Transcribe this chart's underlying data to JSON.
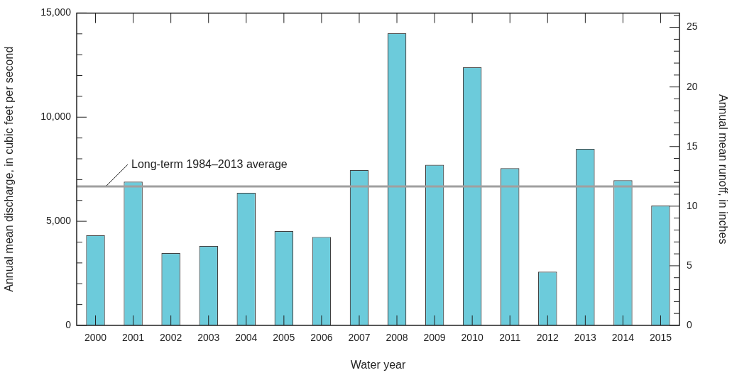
{
  "chart_data": {
    "type": "bar",
    "categories": [
      "2000",
      "2001",
      "2002",
      "2003",
      "2004",
      "2005",
      "2006",
      "2007",
      "2008",
      "2009",
      "2010",
      "2011",
      "2012",
      "2013",
      "2014",
      "2015"
    ],
    "values": [
      4330,
      6900,
      3470,
      3810,
      6370,
      4530,
      4250,
      7460,
      14030,
      7710,
      12400,
      7550,
      2580,
      8480,
      6970,
      5750
    ],
    "color": "#6ccbdb",
    "xlabel": "Water year",
    "ylabel": "Annual mean discharge, in cubic feet per second",
    "y2label": "Annual mean runoff, in inches",
    "ylim": [
      0,
      15000
    ],
    "yticks": [
      {
        "value": 0,
        "label": "0"
      },
      {
        "value": 1000,
        "label": null
      },
      {
        "value": 2000,
        "label": null
      },
      {
        "value": 3000,
        "label": null
      },
      {
        "value": 4000,
        "label": null
      },
      {
        "value": 5000,
        "label": "5,000"
      },
      {
        "value": 6000,
        "label": null
      },
      {
        "value": 7000,
        "label": null
      },
      {
        "value": 8000,
        "label": null
      },
      {
        "value": 9000,
        "label": null
      },
      {
        "value": 10000,
        "label": "10,000"
      },
      {
        "value": 11000,
        "label": null
      },
      {
        "value": 12000,
        "label": null
      },
      {
        "value": 13000,
        "label": null
      },
      {
        "value": 14000,
        "label": null
      },
      {
        "value": 15000,
        "label": "15,000"
      }
    ],
    "y2lim": [
      0,
      26.2
    ],
    "y2ticks": [
      0,
      {
        "value": 1,
        "label": null
      },
      {
        "value": 2,
        "label": null
      },
      {
        "value": 3,
        "label": null
      },
      {
        "value": 4,
        "label": null
      },
      5,
      {
        "value": 6,
        "label": null
      },
      {
        "value": 7,
        "label": null
      },
      {
        "value": 8,
        "label": null
      },
      {
        "value": 9,
        "label": null
      },
      10,
      {
        "value": 11,
        "label": null
      },
      {
        "value": 12,
        "label": null
      },
      {
        "value": 13,
        "label": null
      },
      {
        "value": 14,
        "label": null
      },
      15,
      {
        "value": 16,
        "label": null
      },
      {
        "value": 17,
        "label": null
      },
      {
        "value": 18,
        "label": null
      },
      {
        "value": 19,
        "label": null
      },
      20,
      {
        "value": 21,
        "label": null
      },
      {
        "value": 22,
        "label": null
      },
      {
        "value": 23,
        "label": null
      },
      {
        "value": 24,
        "label": null
      },
      25,
      {
        "value": 26,
        "label": null
      }
    ],
    "ref_lines": [
      {
        "axis": "y",
        "value": 6670,
        "label": "Long-term 1984–2013 average",
        "color": "#a0a0a0"
      }
    ],
    "grid": false,
    "legend": false
  }
}
